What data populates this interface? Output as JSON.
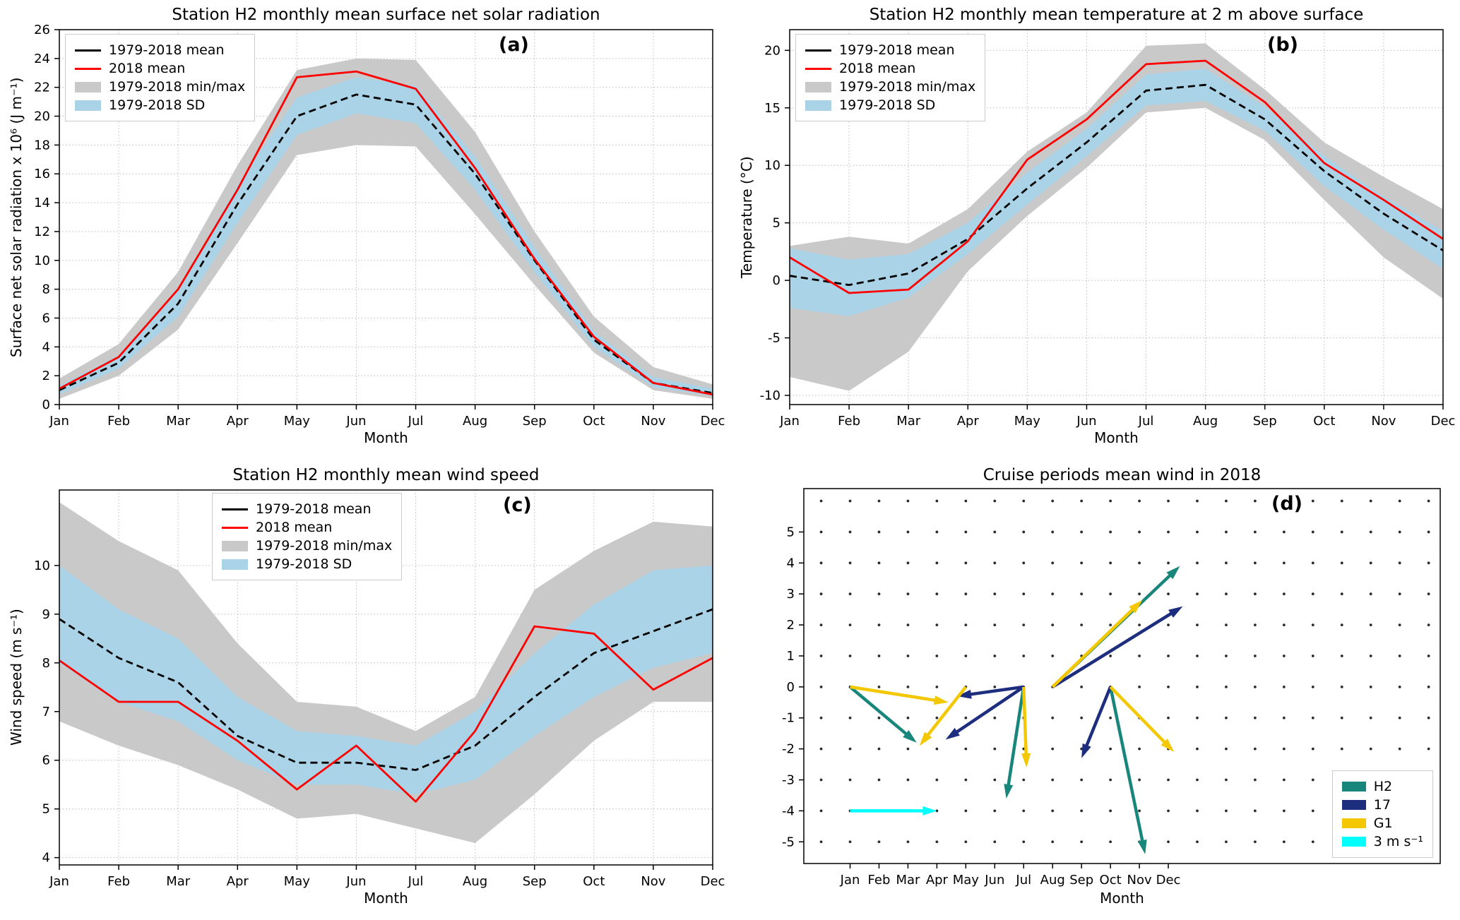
{
  "colors": {
    "mean_line": "#000000",
    "line_2018": "#ff0000",
    "minmax_band": "#c9c9c9",
    "sd_band": "#aad3e7",
    "grid": "#bbbbbb",
    "axis": "#000000",
    "dot": "#2b2b2b"
  },
  "chart_data": [
    {
      "type": "line",
      "tag": "(a)",
      "title": "Station H2 monthly mean surface net solar radiation",
      "xlabel": "Month",
      "ylabel": "Surface net solar radiation x 10⁶ (J m⁻¹)",
      "categories": [
        "Jan",
        "Feb",
        "Mar",
        "Apr",
        "May",
        "Jun",
        "Jul",
        "Aug",
        "Sep",
        "Oct",
        "Nov",
        "Dec"
      ],
      "ylim": [
        0,
        26
      ],
      "yticks": [
        0,
        2,
        4,
        6,
        8,
        10,
        12,
        14,
        16,
        18,
        20,
        22,
        24,
        26
      ],
      "legend": [
        "1979-2018 mean",
        "2018 mean",
        "1979-2018 min/max",
        "1979-2018 SD"
      ],
      "series": [
        {
          "name": "1979-2018 mean",
          "style": "dashed",
          "color": "mean_line",
          "values": [
            1.0,
            2.9,
            7.0,
            13.9,
            20.0,
            21.5,
            20.8,
            16.0,
            10.0,
            4.5,
            1.5,
            0.8
          ]
        },
        {
          "name": "2018 mean",
          "style": "solid",
          "color": "line_2018",
          "values": [
            1.1,
            3.3,
            8.0,
            14.9,
            22.7,
            23.1,
            21.9,
            16.4,
            10.1,
            4.7,
            1.5,
            0.7
          ]
        }
      ],
      "bands": {
        "minmax": {
          "low": [
            0.4,
            2.0,
            5.2,
            11.2,
            17.3,
            18.0,
            17.9,
            13.2,
            8.3,
            3.6,
            1.0,
            0.4
          ],
          "high": [
            1.8,
            4.2,
            9.2,
            16.6,
            23.2,
            24.0,
            23.9,
            18.9,
            12.0,
            6.1,
            2.6,
            1.4
          ]
        },
        "sd": {
          "low": [
            0.7,
            2.5,
            6.1,
            12.6,
            18.7,
            20.2,
            19.5,
            14.9,
            9.2,
            4.0,
            1.2,
            0.6
          ],
          "high": [
            1.3,
            3.4,
            8.0,
            15.2,
            21.3,
            22.7,
            22.1,
            17.2,
            10.9,
            5.1,
            1.9,
            1.1
          ]
        }
      }
    },
    {
      "type": "line",
      "tag": "(b)",
      "title": "Station H2 monthly mean temperature at 2 m above surface",
      "xlabel": "Month",
      "ylabel": "Temperature (°C)",
      "categories": [
        "Jan",
        "Feb",
        "Mar",
        "Apr",
        "May",
        "Jun",
        "Jul",
        "Aug",
        "Sep",
        "Oct",
        "Nov",
        "Dec"
      ],
      "ylim": [
        -10.8,
        21.8
      ],
      "yticks": [
        -10,
        -5,
        0,
        5,
        10,
        15,
        20
      ],
      "legend": [
        "1979-2018 mean",
        "2018 mean",
        "1979-2018 min/max",
        "1979-2018 SD"
      ],
      "series": [
        {
          "name": "1979-2018 mean",
          "style": "dashed",
          "color": "mean_line",
          "values": [
            0.4,
            -0.4,
            0.6,
            3.6,
            8.0,
            12.0,
            16.5,
            17.0,
            14.0,
            9.5,
            5.8,
            2.6
          ]
        },
        {
          "name": "2018 mean",
          "style": "solid",
          "color": "line_2018",
          "values": [
            2.0,
            -1.1,
            -0.8,
            3.4,
            10.5,
            14.0,
            18.8,
            19.1,
            15.5,
            10.2,
            7.0,
            3.6
          ]
        }
      ],
      "bands": {
        "minmax": {
          "low": [
            -8.4,
            -9.6,
            -6.2,
            0.8,
            5.6,
            9.8,
            14.6,
            15.0,
            12.2,
            7.0,
            2.0,
            -1.6
          ],
          "high": [
            3.0,
            3.8,
            3.2,
            6.2,
            11.2,
            14.6,
            20.4,
            20.6,
            16.6,
            12.0,
            9.0,
            6.2
          ]
        },
        "sd": {
          "low": [
            -2.4,
            -3.1,
            -1.5,
            2.3,
            6.6,
            10.8,
            15.2,
            15.6,
            13.0,
            8.2,
            4.4,
            1.0
          ],
          "high": [
            2.8,
            1.8,
            2.3,
            5.0,
            9.4,
            13.2,
            17.9,
            18.4,
            15.1,
            10.8,
            7.3,
            4.3
          ]
        }
      }
    },
    {
      "type": "line",
      "tag": "(c)",
      "title": "Station H2 monthly mean wind speed",
      "xlabel": "Month",
      "ylabel": "Wind speed (m s⁻¹)",
      "categories": [
        "Jan",
        "Feb",
        "Mar",
        "Apr",
        "May",
        "Jun",
        "Jul",
        "Aug",
        "Sep",
        "Oct",
        "Nov",
        "Dec"
      ],
      "ylim": [
        3.85,
        11.55
      ],
      "yticks": [
        4,
        5,
        6,
        7,
        8,
        9,
        10
      ],
      "legend": [
        "1979-2018 mean",
        "2018 mean",
        "1979-2018 min/max",
        "1979-2018 SD"
      ],
      "series": [
        {
          "name": "1979-2018 mean",
          "style": "dashed",
          "color": "mean_line",
          "values": [
            8.9,
            8.1,
            7.6,
            6.5,
            5.95,
            5.95,
            5.8,
            6.3,
            7.3,
            8.2,
            8.65,
            9.1
          ]
        },
        {
          "name": "2018 mean",
          "style": "solid",
          "color": "line_2018",
          "values": [
            8.05,
            7.2,
            7.2,
            6.4,
            5.4,
            6.3,
            5.15,
            6.6,
            8.75,
            8.6,
            7.45,
            8.1
          ]
        }
      ],
      "bands": {
        "minmax": {
          "low": [
            6.8,
            6.3,
            5.9,
            5.4,
            4.8,
            4.9,
            4.6,
            4.3,
            5.3,
            6.4,
            7.2,
            7.2
          ],
          "high": [
            11.3,
            10.5,
            9.9,
            8.4,
            7.2,
            7.1,
            6.6,
            7.3,
            9.5,
            10.3,
            10.9,
            10.8
          ]
        },
        "sd": {
          "low": [
            8.0,
            7.2,
            6.8,
            6.0,
            5.5,
            5.5,
            5.3,
            5.6,
            6.5,
            7.3,
            7.9,
            8.2
          ],
          "high": [
            10.0,
            9.1,
            8.5,
            7.3,
            6.6,
            6.5,
            6.3,
            7.0,
            8.2,
            9.2,
            9.9,
            10.0
          ]
        }
      }
    },
    {
      "type": "quiver",
      "tag": "(d)",
      "title": "Cruise periods mean wind in 2018",
      "xlabel": "Month",
      "month_positions": [
        1,
        2,
        3,
        4,
        5,
        6,
        7,
        8,
        9,
        10,
        11,
        12
      ],
      "month_labels": [
        "Jan",
        "Feb",
        "Mar",
        "Apr",
        "May",
        "Jun",
        "Jul",
        "Aug",
        "Sep",
        "Oct",
        "Nov",
        "Dec"
      ],
      "xlim": [
        -0.6,
        21.4
      ],
      "ylim": [
        -5.7,
        6.4
      ],
      "yticks": [
        -5,
        -4,
        -3,
        -2,
        -1,
        0,
        1,
        2,
        3,
        4,
        5
      ],
      "dot_grid": {
        "x_start": 0,
        "x_end": 21,
        "y_start": -5,
        "y_end": 6
      },
      "series_colors": {
        "H2": "#18867b",
        "17": "#1e2e7e",
        "G1": "#f3c800",
        "ref": "#00ffff"
      },
      "arrows": [
        {
          "series": "H2",
          "x": 1,
          "y": 0,
          "u": 2.3,
          "v": -1.8
        },
        {
          "series": "H2",
          "x": 7,
          "y": 0,
          "u": -0.6,
          "v": -3.6
        },
        {
          "series": "H2",
          "x": 8,
          "y": 0,
          "u": 4.4,
          "v": 3.9
        },
        {
          "series": "H2",
          "x": 10,
          "y": 0,
          "u": 1.2,
          "v": -5.4
        },
        {
          "series": "17",
          "x": 7,
          "y": 0,
          "u": -2.3,
          "v": -0.3
        },
        {
          "series": "17",
          "x": 7,
          "y": 0,
          "u": -2.7,
          "v": -1.7
        },
        {
          "series": "17",
          "x": 8,
          "y": 0,
          "u": 4.5,
          "v": 2.6
        },
        {
          "series": "17",
          "x": 10,
          "y": 0,
          "u": -1.0,
          "v": -2.3
        },
        {
          "series": "G1",
          "x": 1,
          "y": 0,
          "u": 3.4,
          "v": -0.5
        },
        {
          "series": "G1",
          "x": 5,
          "y": 0,
          "u": -1.6,
          "v": -1.9
        },
        {
          "series": "G1",
          "x": 7,
          "y": 0,
          "u": 0.1,
          "v": -2.6
        },
        {
          "series": "G1",
          "x": 8,
          "y": 0,
          "u": 3.1,
          "v": 2.8
        },
        {
          "series": "G1",
          "x": 10,
          "y": 0,
          "u": 2.2,
          "v": -2.1
        }
      ],
      "reference_arrow": {
        "series": "ref",
        "x": 1,
        "y": -4,
        "u": 3,
        "v": 0
      },
      "legend": [
        {
          "label": "H2",
          "series": "H2"
        },
        {
          "label": "17",
          "series": "17"
        },
        {
          "label": "G1",
          "series": "G1"
        },
        {
          "label": "3 m s⁻¹",
          "series": "ref"
        }
      ]
    }
  ]
}
